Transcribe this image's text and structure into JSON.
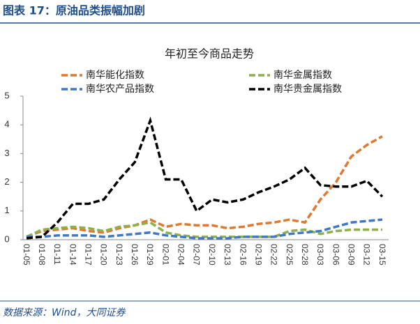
{
  "header": {
    "title": "图表 17：原油品类振幅加剧"
  },
  "chart_data": {
    "type": "line",
    "title": "年初至今商品走势",
    "categories": [
      "01-05",
      "01-08",
      "01-11",
      "01-14",
      "01-17",
      "01-20",
      "01-23",
      "01-26",
      "01-29",
      "02-01",
      "02-04",
      "02-07",
      "02-10",
      "02-13",
      "02-16",
      "02-19",
      "02-22",
      "02-25",
      "02-28",
      "03-03",
      "03-06",
      "03-09",
      "03-12",
      "03-15"
    ],
    "series": [
      {
        "name": "南华能化指数",
        "color": "#e0792f",
        "values": [
          0.1,
          0.3,
          0.35,
          0.4,
          0.3,
          0.25,
          0.4,
          0.5,
          0.7,
          0.45,
          0.55,
          0.5,
          0.5,
          0.4,
          0.45,
          0.55,
          0.6,
          0.7,
          0.6,
          1.4,
          2.0,
          2.9,
          3.3,
          3.6
        ]
      },
      {
        "name": "南华金属指数",
        "color": "#8db04a",
        "values": [
          0.1,
          0.35,
          0.4,
          0.45,
          0.4,
          0.3,
          0.45,
          0.5,
          0.6,
          0.25,
          0.15,
          0.1,
          0.1,
          0.1,
          0.1,
          0.1,
          0.1,
          0.3,
          0.35,
          0.2,
          0.3,
          0.35,
          0.35,
          0.35
        ]
      },
      {
        "name": "南华农产品指数",
        "color": "#3f78c8",
        "values": [
          0.1,
          0.1,
          0.15,
          0.15,
          0.15,
          0.1,
          0.15,
          0.2,
          0.25,
          0.15,
          0.1,
          0.05,
          0.05,
          0.05,
          0.1,
          0.1,
          0.1,
          0.2,
          0.25,
          0.3,
          0.45,
          0.6,
          0.65,
          0.7
        ]
      },
      {
        "name": "南华贵金属指数",
        "color": "#000000",
        "values": [
          0.05,
          0.1,
          0.6,
          1.25,
          1.25,
          1.4,
          2.1,
          2.7,
          4.15,
          2.1,
          2.1,
          1.0,
          1.4,
          1.3,
          1.4,
          1.65,
          1.85,
          2.1,
          2.5,
          1.9,
          1.85,
          1.85,
          2.05,
          1.5
        ]
      }
    ],
    "ylim": [
      0,
      5
    ],
    "yticks": [
      0,
      1,
      2,
      3,
      4,
      5
    ],
    "grid": false
  },
  "footer": {
    "source": "数据来源：Wind，大同证券"
  }
}
